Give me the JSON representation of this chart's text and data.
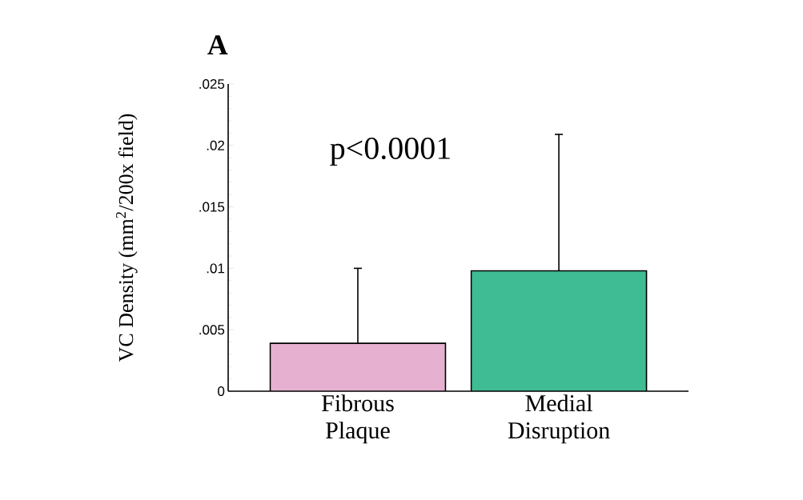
{
  "chart_data": {
    "type": "bar",
    "title": "A",
    "categories": [
      "Fibrous Plaque",
      "Medial Disruption"
    ],
    "values": [
      0.0039,
      0.0098
    ],
    "colors": [
      "#e6b0d0",
      "#40bc94"
    ],
    "errors": [
      [
        0.0039,
        0.01
      ],
      [
        0.0098,
        0.0209
      ]
    ],
    "ylabel": "VC Density (mm$^{2}$/200x field)",
    "ylim": [
      0,
      0.025
    ],
    "yticks": [
      {
        "value": 0,
        "label": "0"
      },
      {
        "value": 0.005,
        "label": ".005"
      },
      {
        "value": 0.01,
        "label": ".01"
      },
      {
        "value": 0.015,
        "label": ".015"
      },
      {
        "value": 0.02,
        "label": ".02"
      },
      {
        "value": 0.025,
        "label": ".025"
      }
    ],
    "annotations": [
      "p<0.0001"
    ],
    "grid": false
  }
}
